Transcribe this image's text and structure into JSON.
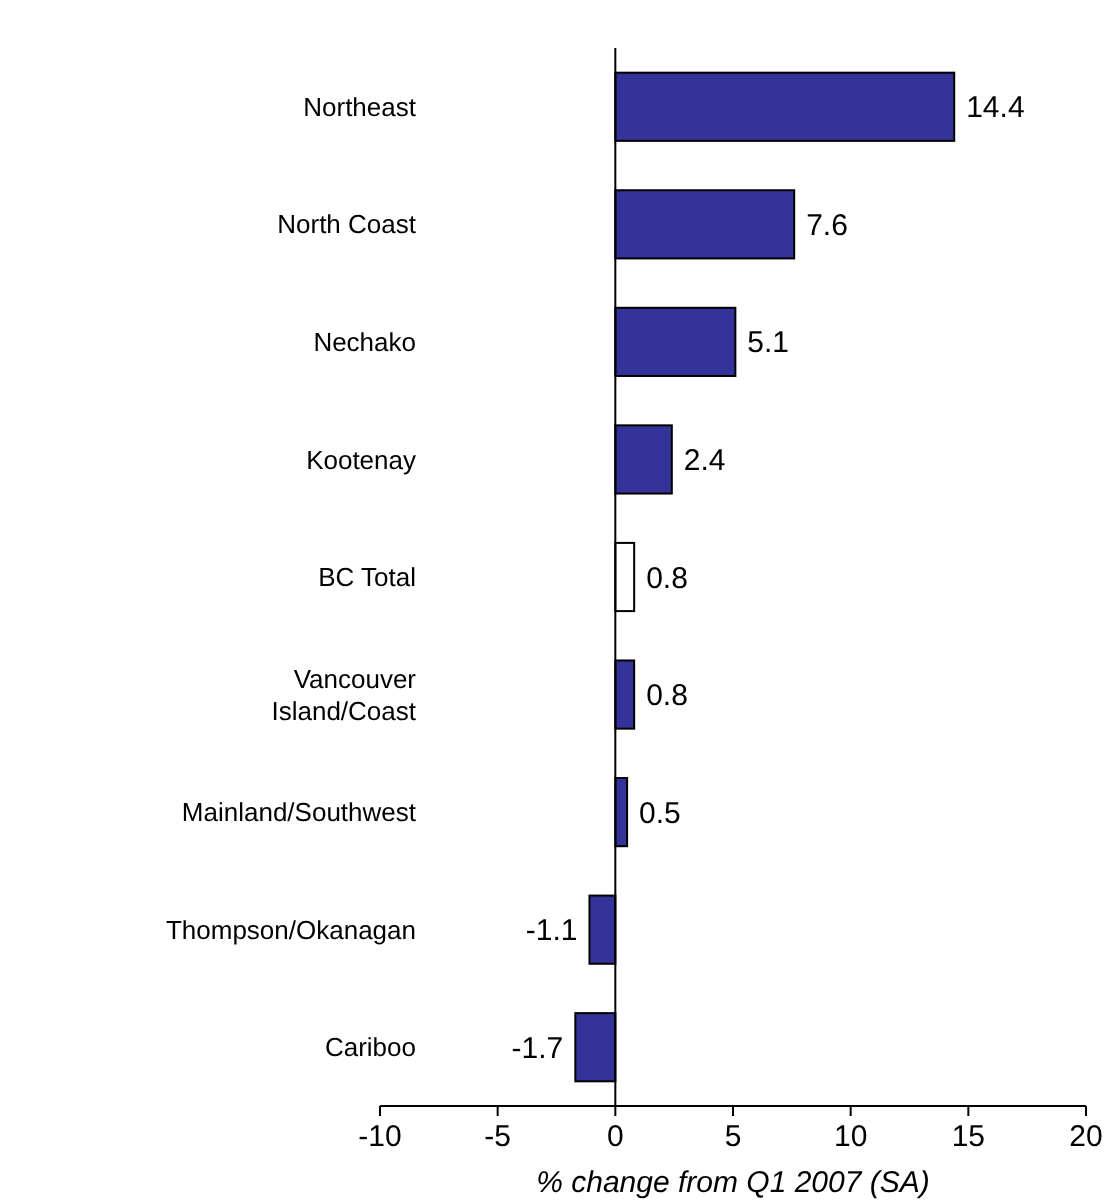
{
  "chart_data": {
    "type": "bar",
    "orientation": "horizontal",
    "xlabel": "% change from Q1 2007 (SA)",
    "categories": [
      "Northeast",
      "North Coast",
      "Nechako",
      "Kootenay",
      "BC Total",
      "Vancouver Island/Coast",
      "Mainland/Southwest",
      "Thompson/Okanagan",
      "Cariboo"
    ],
    "values": [
      14.4,
      7.6,
      5.1,
      2.4,
      0.8,
      0.8,
      0.5,
      -1.1,
      -1.7
    ],
    "colors": [
      "#333399",
      "#333399",
      "#333399",
      "#333399",
      "#ffffff",
      "#333399",
      "#333399",
      "#333399",
      "#333399"
    ],
    "xlim": [
      -10,
      20
    ],
    "xticks": [
      -10,
      -5,
      0,
      5,
      10,
      15,
      20
    ],
    "data_labels": true
  }
}
